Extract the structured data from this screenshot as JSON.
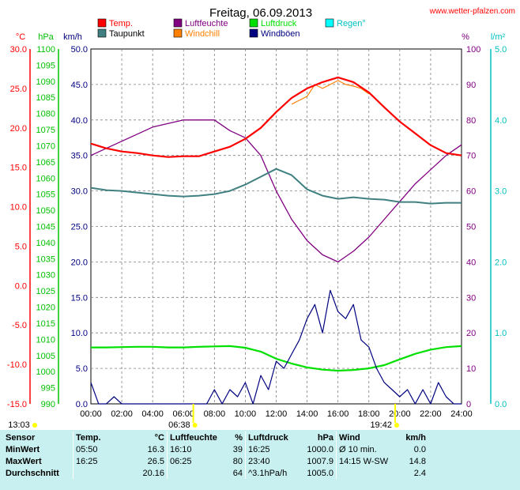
{
  "chart_data": {
    "type": "line",
    "title": "Freitag, 06.09.2013",
    "source": "www.wetter-pfalzen.com",
    "legend": [
      {
        "name": "Temp.",
        "color": "#ff0000"
      },
      {
        "name": "Luftfeuchte",
        "color": "#800080"
      },
      {
        "name": "Luftdruck",
        "color": "#00e000"
      },
      {
        "name": "Regen°",
        "color": "#00ffff"
      },
      {
        "name": "Taupunkt",
        "color": "#408080"
      },
      {
        "name": "Windchill",
        "color": "#ff8000"
      },
      {
        "name": "Windböen",
        "color": "#000080"
      }
    ],
    "axes": {
      "temp": {
        "unit": "°C",
        "min": -15,
        "max": 30,
        "ticks": [
          "30.0",
          "25.0",
          "20.0",
          "15.0",
          "10.0",
          "5.0",
          "0.0",
          "-5.0",
          "-10.0",
          "-15.0"
        ],
        "color": "#ff0000"
      },
      "pressure": {
        "unit": "hPa",
        "min": 990,
        "max": 1100,
        "ticks": [
          "1100",
          "1095",
          "1090",
          "1085",
          "1080",
          "1075",
          "1070",
          "1065",
          "1060",
          "1055",
          "1050",
          "1045",
          "1040",
          "1035",
          "1030",
          "1025",
          "1020",
          "1015",
          "1010",
          "1005",
          "1000",
          "995",
          "990"
        ],
        "color": "#00c000"
      },
      "wind": {
        "unit": "km/h",
        "min": 0,
        "max": 50,
        "ticks": [
          "50.0",
          "45.0",
          "40.0",
          "35.0",
          "30.0",
          "25.0",
          "20.0",
          "15.0",
          "10.0",
          "5.0",
          "0.0"
        ],
        "color": "#000080"
      },
      "humidity": {
        "unit": "%",
        "min": 0,
        "max": 100,
        "ticks": [
          "100",
          "90",
          "80",
          "70",
          "60",
          "50",
          "40",
          "30",
          "20",
          "10",
          "0"
        ],
        "color": "#800080"
      },
      "rain": {
        "unit": "l/m²",
        "min": 0,
        "max": 5,
        "ticks": [
          "5.0",
          "4.0",
          "3.0",
          "2.0",
          "1.0",
          "0.0"
        ],
        "color": "#00c0c0"
      }
    },
    "x_ticks": [
      "00:00",
      "02:00",
      "04:00",
      "06:00",
      "08:00",
      "10:00",
      "12:00",
      "14:00",
      "16:00",
      "18:00",
      "20:00",
      "22:00",
      "24:00"
    ],
    "sun": {
      "daylight_start_label": "13:03",
      "sunrise": "06:38",
      "sunset": "19:42"
    },
    "series": [
      {
        "name": "Temp.",
        "axis": "temp",
        "x": [
          0,
          1,
          2,
          3,
          4,
          5,
          6,
          7,
          8,
          9,
          10,
          11,
          12,
          13,
          14,
          15,
          16,
          17,
          18,
          19,
          20,
          21,
          22,
          23,
          24
        ],
        "values": [
          18.0,
          17.4,
          17.0,
          16.8,
          16.5,
          16.3,
          16.4,
          16.4,
          17.0,
          17.6,
          18.6,
          20.0,
          22.0,
          23.8,
          25.0,
          25.8,
          26.4,
          25.8,
          24.5,
          22.6,
          20.8,
          19.3,
          17.8,
          16.8,
          16.5
        ]
      },
      {
        "name": "Windchill",
        "axis": "temp",
        "x": [
          13,
          13.5,
          14,
          14.5,
          15,
          15.5,
          16,
          16.5,
          17,
          17.5,
          18
        ],
        "values": [
          23.0,
          23.5,
          24.0,
          25.5,
          25.0,
          25.5,
          26.0,
          25.5,
          25.3,
          25.0,
          24.3
        ]
      },
      {
        "name": "Taupunkt",
        "axis": "temp",
        "x": [
          0,
          1,
          2,
          3,
          4,
          5,
          6,
          7,
          8,
          9,
          10,
          11,
          12,
          13,
          14,
          15,
          16,
          17,
          18,
          19,
          20,
          21,
          22,
          23,
          24
        ],
        "values": [
          12.4,
          12.1,
          12.0,
          11.8,
          11.6,
          11.4,
          11.3,
          11.4,
          11.6,
          12.0,
          12.8,
          13.8,
          14.8,
          14.0,
          12.2,
          11.4,
          11.0,
          11.2,
          11.0,
          10.9,
          10.6,
          10.6,
          10.4,
          10.5,
          10.5
        ]
      },
      {
        "name": "Luftfeuchte",
        "axis": "humidity",
        "x": [
          0,
          1,
          2,
          3,
          4,
          5,
          6,
          7,
          8,
          9,
          10,
          11,
          12,
          13,
          14,
          15,
          16,
          17,
          18,
          19,
          20,
          21,
          22,
          23,
          24
        ],
        "values": [
          70,
          72,
          74,
          76,
          78,
          79,
          80,
          80,
          80,
          77,
          75,
          70,
          60,
          52,
          46,
          42,
          40,
          43,
          47,
          52,
          57,
          62,
          66,
          70,
          73
        ]
      },
      {
        "name": "Luftdruck",
        "axis": "pressure",
        "x": [
          0,
          1,
          2,
          3,
          4,
          5,
          6,
          7,
          8,
          9,
          10,
          11,
          12,
          13,
          14,
          15,
          16,
          17,
          18,
          19,
          20,
          21,
          22,
          23,
          24
        ],
        "values": [
          1007.5,
          1007.5,
          1007.6,
          1007.7,
          1007.7,
          1007.5,
          1007.5,
          1007.7,
          1007.8,
          1007.9,
          1007.4,
          1006.2,
          1004.0,
          1002.5,
          1001.3,
          1000.6,
          1000.3,
          1000.5,
          1001.0,
          1002.0,
          1003.8,
          1005.5,
          1006.8,
          1007.6,
          1007.9
        ]
      },
      {
        "name": "Windböen",
        "axis": "wind",
        "x": [
          0,
          0.5,
          1,
          1.5,
          2,
          2.5,
          3,
          3.5,
          4,
          4.5,
          5,
          5.5,
          6,
          6.5,
          7,
          7.5,
          8,
          8.5,
          9,
          9.5,
          10,
          10.5,
          11,
          11.5,
          12,
          12.5,
          13,
          13.5,
          14,
          14.5,
          15,
          15.5,
          16,
          16.5,
          17,
          17.5,
          18,
          18.5,
          19,
          19.5,
          20,
          20.5,
          21,
          21.5,
          22,
          22.5,
          23,
          23.5,
          24
        ],
        "values": [
          3,
          0,
          0,
          1,
          0,
          0,
          0,
          0,
          0,
          0,
          0,
          0,
          0,
          0,
          0,
          0,
          2,
          0,
          2,
          1,
          3,
          0,
          4,
          2,
          6,
          5,
          7,
          9,
          12,
          14,
          10,
          16,
          13,
          12,
          14,
          9,
          8,
          5,
          3,
          2,
          1,
          2,
          0,
          2,
          0,
          3,
          1,
          0,
          0
        ]
      }
    ]
  },
  "stats": {
    "headers": [
      "Sensor",
      "Temp.",
      "°C",
      "Luftfeuchte",
      "%",
      "Luftdruck",
      "hPa",
      "Wind",
      "km/h"
    ],
    "rows": [
      {
        "label": "MinWert",
        "cells": [
          "05:50",
          "16.3",
          "16:10",
          "39",
          "16:25",
          "1000.0",
          "Ø 10 min.",
          "0.0"
        ]
      },
      {
        "label": "MaxWert",
        "cells": [
          "16:25",
          "26.5",
          "06:25",
          "80",
          "23:40",
          "1007.9",
          "14:15   W-SW",
          "14.8"
        ]
      },
      {
        "label": "Durchschnitt",
        "cells": [
          "",
          "20.16",
          "",
          "64",
          "^3.1hPa/h",
          "1005.0",
          "",
          "2.4"
        ]
      }
    ]
  }
}
